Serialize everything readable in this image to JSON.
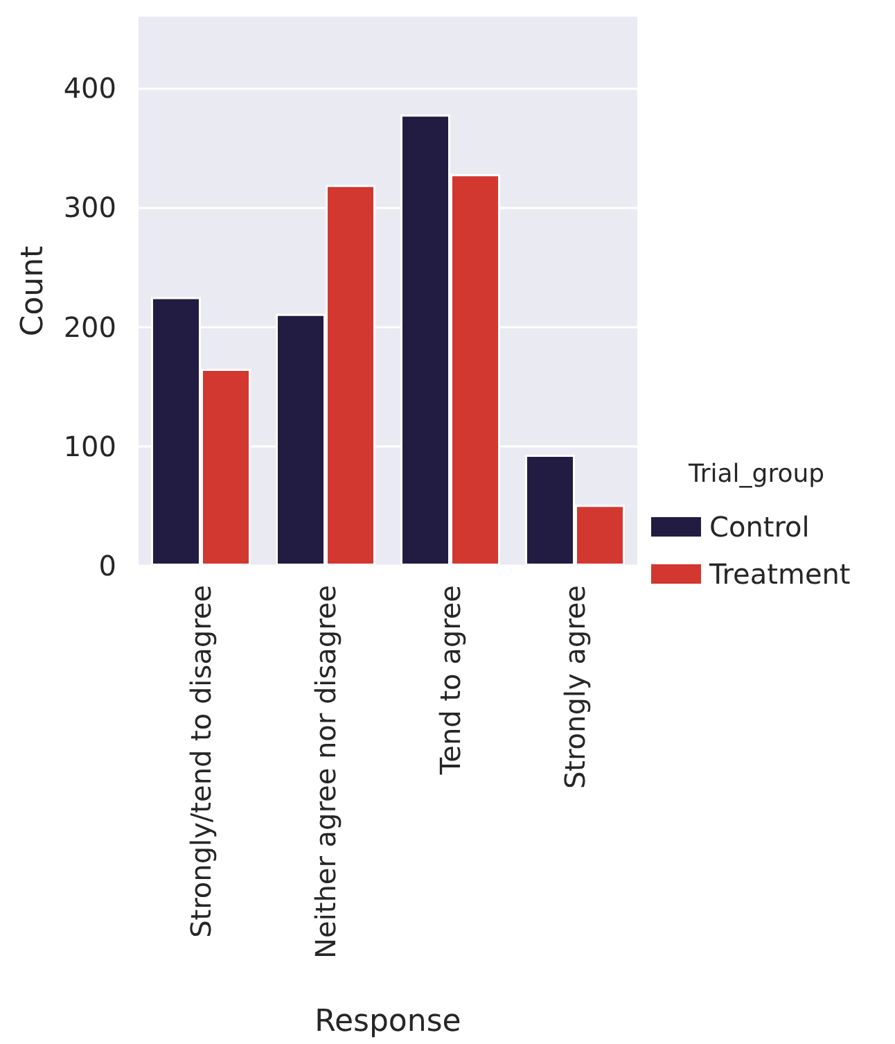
{
  "chart_data": {
    "type": "bar",
    "xlabel": "Response",
    "ylabel": "Count",
    "legend_title": "Trial_group",
    "categories": [
      "Strongly/tend to disagree",
      "Neither agree nor disagree",
      "Tend to agree",
      "Strongly agree"
    ],
    "series": [
      {
        "name": "Control",
        "color": "#221c42",
        "values": [
          225,
          211,
          378,
          93
        ]
      },
      {
        "name": "Treatment",
        "color": "#d23730",
        "values": [
          165,
          319,
          328,
          51
        ]
      }
    ],
    "ylim": [
      0,
      460
    ],
    "yticks": [
      0,
      100,
      200,
      300,
      400
    ],
    "grid": "y",
    "legend": "right"
  }
}
